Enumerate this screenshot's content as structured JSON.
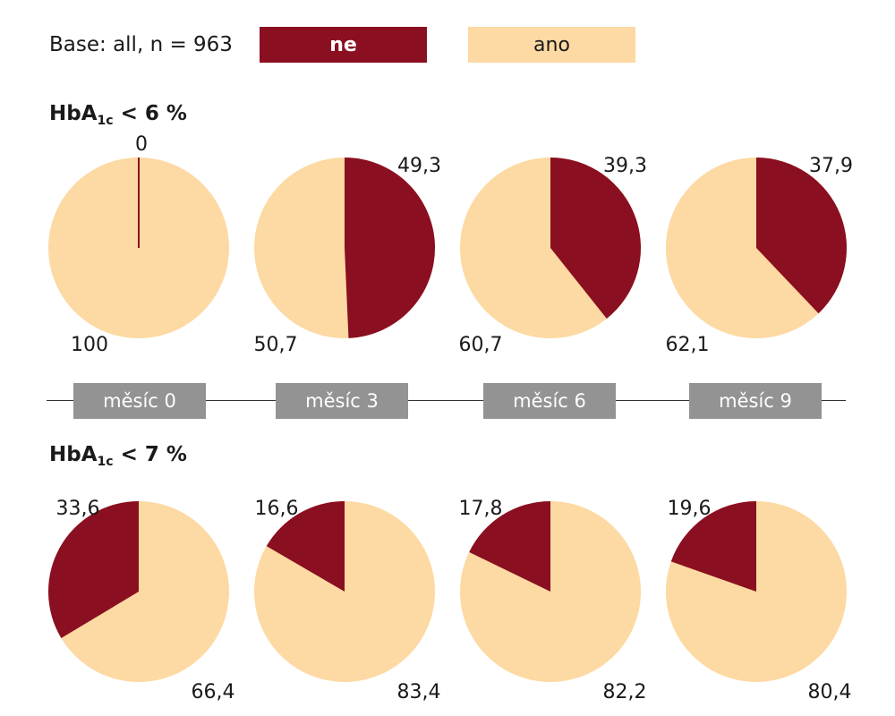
{
  "base_label": "Base: all, n = 963",
  "colors": {
    "ne": "#8a0f20",
    "ano": "#fdd9a3",
    "month_box": "#939393"
  },
  "legend": [
    {
      "label": "ne",
      "color": "#8a0f20"
    },
    {
      "label": "ano",
      "color": "#fdd9a3"
    }
  ],
  "section1": {
    "title_main": "HbA",
    "title_sub": "1c",
    "title_rest": " < 6 %"
  },
  "section2": {
    "title_main": "HbA",
    "title_sub": "1c",
    "title_rest": " < 7 %"
  },
  "months": [
    "měsíc 0",
    "měsíc 3",
    "měsíc 6",
    "měsíc 9"
  ],
  "chart_data": [
    {
      "type": "pie",
      "title": "HbA1c < 6 %",
      "categories": [
        "měsíc 0",
        "měsíc 3",
        "měsíc 6",
        "měsíc 9"
      ],
      "series": [
        {
          "name": "ne",
          "values": [
            0,
            49.3,
            39.3,
            37.9
          ]
        },
        {
          "name": "ano",
          "values": [
            100,
            50.7,
            60.7,
            62.1
          ]
        }
      ],
      "data_labels": {
        "ne": [
          "0",
          "49,3",
          "39,3",
          "37,9"
        ],
        "ano": [
          "100",
          "50,7",
          "60,7",
          "62,1"
        ]
      }
    },
    {
      "type": "pie",
      "title": "HbA1c < 7 %",
      "categories": [
        "měsíc 0",
        "měsíc 3",
        "měsíc 6",
        "měsíc 9"
      ],
      "series": [
        {
          "name": "ne",
          "values": [
            33.6,
            16.6,
            17.8,
            19.6
          ]
        },
        {
          "name": "ano",
          "values": [
            66.4,
            83.4,
            82.2,
            80.4
          ]
        }
      ],
      "data_labels": {
        "ne": [
          "33,6",
          "16,6",
          "17,8",
          "19,6"
        ],
        "ano": [
          "66,4",
          "83,4",
          "82,2",
          "80,4"
        ]
      }
    }
  ]
}
